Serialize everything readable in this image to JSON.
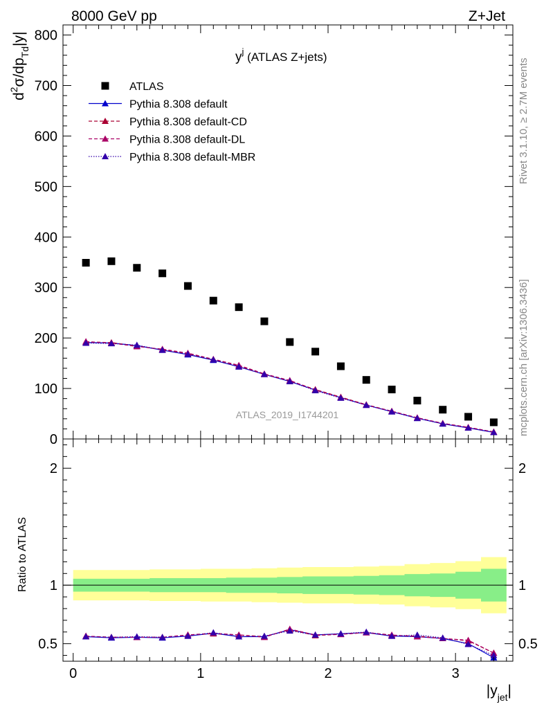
{
  "header": {
    "left": "8000 GeV pp",
    "right": "Z+Jet"
  },
  "side_labels": {
    "rivet": "Rivet 3.1.10, ≥ 2.7M events",
    "mcplots": "mcplots.cern.ch [arXiv:1306.3436]"
  },
  "colors": {
    "atlas": "#000000",
    "default": "#0000cc",
    "cd": "#aa0033",
    "dl": "#aa0066",
    "mbr": "#3300aa",
    "band_outer": "#ffff99",
    "band_inner": "#88ee88"
  },
  "chart_data": [
    {
      "type": "scatter",
      "title_main": "y",
      "title_sup": "j",
      "title_rest": " (ATLAS Z+jets)",
      "watermark": "ATLAS_2019_I1744201",
      "ylabel": {
        "d": "d",
        "sup2": "2",
        "sigma": "σ/dp",
        "sub": "Td",
        "tail": "|y|"
      },
      "ylim": [
        0,
        820
      ],
      "xlim": [
        -0.08,
        3.45
      ],
      "yticks": [
        "0",
        "100",
        "200",
        "300",
        "400",
        "500",
        "600",
        "700",
        "800"
      ],
      "x": [
        0.1,
        0.3,
        0.5,
        0.7,
        0.9,
        1.1,
        1.3,
        1.5,
        1.7,
        1.9,
        2.1,
        2.3,
        2.5,
        2.7,
        2.9,
        3.1,
        3.3
      ],
      "series": [
        {
          "name": "ATLAS",
          "marker": "square",
          "values": [
            349,
            352,
            339,
            328,
            303,
            274,
            261,
            233,
            192,
            173,
            144,
            117,
            98,
            76,
            58,
            44,
            33
          ]
        },
        {
          "name": "Pythia 8.308 default",
          "marker": "triangle",
          "line": "solid",
          "values": [
            191,
            190,
            185,
            176,
            167,
            156,
            143,
            128,
            114,
            97,
            82,
            67,
            54,
            41,
            30,
            22,
            13
          ]
        },
        {
          "name": "Pythia 8.308 default-CD",
          "marker": "triangle",
          "line": "dashed",
          "values": [
            192,
            191,
            184,
            177,
            169,
            157,
            145,
            128,
            115,
            98,
            83,
            68,
            55,
            42,
            31,
            23,
            14
          ]
        },
        {
          "name": "Pythia 8.308 default-DL",
          "marker": "triangle",
          "line": "dashed",
          "values": [
            193,
            190,
            183,
            178,
            170,
            158,
            146,
            129,
            116,
            97,
            82,
            67,
            55,
            42,
            31,
            23,
            14
          ]
        },
        {
          "name": "Pythia 8.308 default-MBR",
          "marker": "triangle",
          "line": "dotted",
          "values": [
            190,
            189,
            186,
            176,
            168,
            157,
            143,
            128,
            114,
            96,
            81,
            67,
            54,
            41,
            30,
            22,
            13
          ]
        }
      ]
    },
    {
      "type": "line",
      "ylabel": "Ratio to ATLAS",
      "xlabel_main": "|y",
      "xlabel_sub": "jet",
      "xlabel_end": "|",
      "ylim": [
        0.35,
        2.25
      ],
      "yticks": [
        {
          "value": 0.5,
          "label": "0.5"
        },
        {
          "value": 1,
          "label": "1"
        },
        {
          "value": 2,
          "label": "2"
        }
      ],
      "xticks": [
        {
          "value": 0,
          "label": "0"
        },
        {
          "value": 1,
          "label": "1"
        },
        {
          "value": 2,
          "label": "2"
        },
        {
          "value": 3,
          "label": "3"
        }
      ],
      "band_x": [
        0.0,
        0.2,
        0.4,
        0.6,
        0.8,
        1.0,
        1.2,
        1.4,
        1.6,
        1.8,
        2.0,
        2.2,
        2.4,
        2.6,
        2.8,
        3.0,
        3.2,
        3.4
      ],
      "band_outer": [
        0.13,
        0.13,
        0.13,
        0.135,
        0.135,
        0.14,
        0.14,
        0.145,
        0.15,
        0.155,
        0.155,
        0.16,
        0.165,
        0.18,
        0.19,
        0.205,
        0.24
      ],
      "band_inner": [
        0.055,
        0.055,
        0.055,
        0.06,
        0.06,
        0.06,
        0.065,
        0.065,
        0.07,
        0.075,
        0.075,
        0.08,
        0.085,
        0.095,
        0.1,
        0.115,
        0.14
      ],
      "series": [
        {
          "name": "Pythia 8.308 default",
          "values": [
            0.56,
            0.55,
            0.555,
            0.55,
            0.565,
            0.59,
            0.56,
            0.56,
            0.62,
            0.575,
            0.585,
            0.595,
            0.565,
            0.56,
            0.545,
            0.5,
            0.38
          ]
        },
        {
          "name": "Pythia 8.308 default-CD",
          "values": [
            0.565,
            0.555,
            0.555,
            0.555,
            0.575,
            0.585,
            0.575,
            0.56,
            0.62,
            0.57,
            0.58,
            0.595,
            0.57,
            0.565,
            0.545,
            0.525,
            0.42
          ]
        },
        {
          "name": "Pythia 8.308 default-DL",
          "values": [
            0.565,
            0.555,
            0.555,
            0.555,
            0.575,
            0.59,
            0.575,
            0.555,
            0.625,
            0.575,
            0.58,
            0.595,
            0.575,
            0.56,
            0.545,
            0.53,
            0.42
          ]
        },
        {
          "name": "Pythia 8.308 default-MBR",
          "values": [
            0.56,
            0.555,
            0.56,
            0.555,
            0.565,
            0.595,
            0.56,
            0.565,
            0.61,
            0.575,
            0.585,
            0.6,
            0.565,
            0.575,
            0.55,
            0.495,
            0.4
          ]
        }
      ]
    }
  ]
}
